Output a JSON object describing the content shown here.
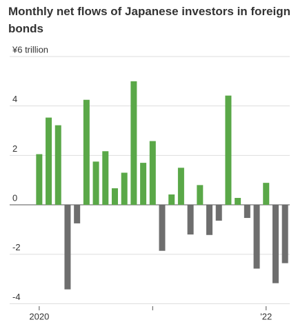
{
  "chart_data": {
    "type": "bar",
    "title": "Monthly net flows of Japanese investors in foreign bonds",
    "categories": [
      "2020",
      null,
      null,
      null,
      null,
      null,
      null,
      null,
      null,
      null,
      null,
      null,
      null,
      null,
      null,
      null,
      null,
      null,
      null,
      null,
      null,
      null,
      null,
      null,
      "'22",
      null,
      null
    ],
    "values": [
      2.05,
      3.53,
      3.22,
      -3.42,
      -0.75,
      4.25,
      1.75,
      2.17,
      0.67,
      1.3,
      5.0,
      1.7,
      2.58,
      -1.86,
      0.42,
      1.5,
      -1.2,
      0.8,
      -1.22,
      -0.64,
      4.42,
      0.28,
      -0.53,
      -2.58,
      0.89,
      -3.17,
      -2.36
    ],
    "positive_color": "#5aa848",
    "negative_color": "#6e6e6e",
    "ylim": [
      -4.1,
      6
    ],
    "yticks": [
      -4,
      -2,
      0,
      2,
      4,
      {
        "value": 6,
        "label": "¥6 trillion"
      }
    ],
    "grid": true
  }
}
